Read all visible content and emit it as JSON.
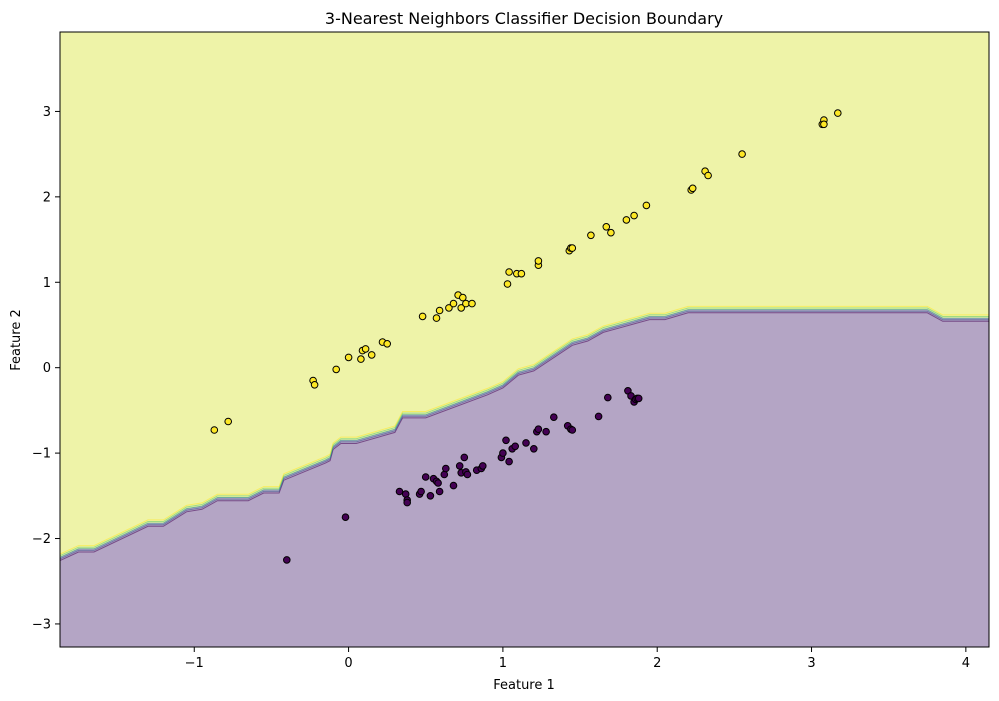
{
  "chart_data": {
    "type": "scatter",
    "title": "3-Nearest Neighbors Classifier Decision Boundary",
    "xlabel": "Feature 1",
    "ylabel": "Feature 2",
    "xlim": [
      -1.87,
      4.15
    ],
    "ylim": [
      -3.27,
      3.93
    ],
    "xticks": [
      -1,
      0,
      1,
      2,
      3,
      4
    ],
    "yticks": [
      -3,
      -2,
      -1,
      0,
      1,
      2,
      3
    ],
    "grid": false,
    "colors": {
      "class_1_region": "#eef3a8",
      "class_0_region": "#b4a5c5",
      "class_1_point": "#fde725",
      "class_0_point": "#440154",
      "boundary_lines": [
        "#440154",
        "#3b528b",
        "#21918c",
        "#5ec962",
        "#fde725"
      ]
    },
    "decision_boundary": [
      [
        -1.87,
        -2.22
      ],
      [
        -1.75,
        -2.12
      ],
      [
        -1.65,
        -2.12
      ],
      [
        -1.3,
        -1.82
      ],
      [
        -1.2,
        -1.82
      ],
      [
        -1.05,
        -1.65
      ],
      [
        -0.95,
        -1.62
      ],
      [
        -0.85,
        -1.52
      ],
      [
        -0.65,
        -1.52
      ],
      [
        -0.55,
        -1.43
      ],
      [
        -0.45,
        -1.43
      ],
      [
        -0.42,
        -1.28
      ],
      [
        -0.15,
        -1.08
      ],
      [
        -0.12,
        -1.05
      ],
      [
        -0.1,
        -0.92
      ],
      [
        -0.05,
        -0.85
      ],
      [
        0.05,
        -0.85
      ],
      [
        0.3,
        -0.72
      ],
      [
        0.35,
        -0.55
      ],
      [
        0.5,
        -0.55
      ],
      [
        0.9,
        -0.28
      ],
      [
        1.0,
        -0.2
      ],
      [
        1.1,
        -0.05
      ],
      [
        1.2,
        0.0
      ],
      [
        1.45,
        0.3
      ],
      [
        1.55,
        0.35
      ],
      [
        1.65,
        0.45
      ],
      [
        1.75,
        0.5
      ],
      [
        1.85,
        0.55
      ],
      [
        1.95,
        0.6
      ],
      [
        2.05,
        0.6
      ],
      [
        2.2,
        0.68
      ],
      [
        3.75,
        0.68
      ],
      [
        3.85,
        0.58
      ],
      [
        4.15,
        0.58
      ]
    ],
    "series": [
      {
        "class": 1,
        "points": [
          [
            -0.87,
            -0.73
          ],
          [
            -0.78,
            -0.63
          ],
          [
            -0.23,
            -0.15
          ],
          [
            -0.22,
            -0.2
          ],
          [
            -0.08,
            -0.02
          ],
          [
            0.0,
            0.12
          ],
          [
            0.08,
            0.1
          ],
          [
            0.09,
            0.2
          ],
          [
            0.11,
            0.22
          ],
          [
            0.15,
            0.15
          ],
          [
            0.22,
            0.3
          ],
          [
            0.25,
            0.28
          ],
          [
            0.48,
            0.6
          ],
          [
            0.57,
            0.58
          ],
          [
            0.59,
            0.67
          ],
          [
            0.65,
            0.7
          ],
          [
            0.68,
            0.75
          ],
          [
            0.71,
            0.85
          ],
          [
            0.73,
            0.7
          ],
          [
            0.74,
            0.82
          ],
          [
            0.76,
            0.75
          ],
          [
            0.8,
            0.75
          ],
          [
            1.03,
            0.98
          ],
          [
            1.04,
            1.12
          ],
          [
            1.09,
            1.1
          ],
          [
            1.12,
            1.1
          ],
          [
            1.23,
            1.2
          ],
          [
            1.23,
            1.25
          ],
          [
            1.43,
            1.37
          ],
          [
            1.44,
            1.4
          ],
          [
            1.45,
            1.4
          ],
          [
            1.57,
            1.55
          ],
          [
            1.67,
            1.65
          ],
          [
            1.7,
            1.58
          ],
          [
            1.8,
            1.73
          ],
          [
            1.85,
            1.78
          ],
          [
            1.93,
            1.9
          ],
          [
            2.22,
            2.08
          ],
          [
            2.23,
            2.1
          ],
          [
            2.31,
            2.3
          ],
          [
            2.33,
            2.25
          ],
          [
            2.55,
            2.5
          ],
          [
            3.07,
            2.85
          ],
          [
            3.08,
            2.9
          ],
          [
            3.08,
            2.85
          ],
          [
            3.17,
            2.98
          ]
        ]
      },
      {
        "class": 0,
        "points": [
          [
            -0.4,
            -2.25
          ],
          [
            -0.02,
            -1.75
          ],
          [
            0.33,
            -1.45
          ],
          [
            0.37,
            -1.48
          ],
          [
            0.38,
            -1.55
          ],
          [
            0.38,
            -1.58
          ],
          [
            0.46,
            -1.48
          ],
          [
            0.47,
            -1.45
          ],
          [
            0.5,
            -1.28
          ],
          [
            0.53,
            -1.5
          ],
          [
            0.55,
            -1.3
          ],
          [
            0.57,
            -1.33
          ],
          [
            0.58,
            -1.35
          ],
          [
            0.59,
            -1.45
          ],
          [
            0.62,
            -1.25
          ],
          [
            0.63,
            -1.18
          ],
          [
            0.68,
            -1.38
          ],
          [
            0.72,
            -1.15
          ],
          [
            0.73,
            -1.23
          ],
          [
            0.75,
            -1.05
          ],
          [
            0.76,
            -1.22
          ],
          [
            0.77,
            -1.25
          ],
          [
            0.83,
            -1.2
          ],
          [
            0.86,
            -1.18
          ],
          [
            0.87,
            -1.15
          ],
          [
            0.99,
            -1.05
          ],
          [
            1.0,
            -1.0
          ],
          [
            1.02,
            -0.85
          ],
          [
            1.04,
            -1.1
          ],
          [
            1.06,
            -0.95
          ],
          [
            1.08,
            -0.92
          ],
          [
            1.15,
            -0.88
          ],
          [
            1.2,
            -0.95
          ],
          [
            1.22,
            -0.75
          ],
          [
            1.23,
            -0.72
          ],
          [
            1.28,
            -0.75
          ],
          [
            1.33,
            -0.58
          ],
          [
            1.42,
            -0.68
          ],
          [
            1.44,
            -0.72
          ],
          [
            1.45,
            -0.73
          ],
          [
            1.62,
            -0.57
          ],
          [
            1.68,
            -0.35
          ],
          [
            1.81,
            -0.27
          ],
          [
            1.83,
            -0.33
          ],
          [
            1.85,
            -0.4
          ],
          [
            1.86,
            -0.37
          ],
          [
            1.87,
            -0.36
          ],
          [
            1.88,
            -0.36
          ]
        ]
      }
    ]
  }
}
